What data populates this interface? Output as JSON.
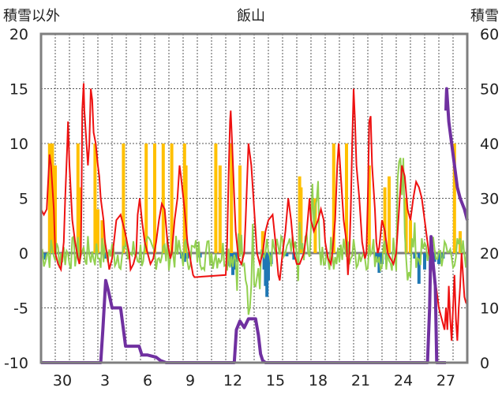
{
  "chart_data": {
    "type": "line",
    "title": "飯山",
    "left_axis_label": "積雪以外",
    "right_axis_label": "積雪",
    "y_left": {
      "min": -10,
      "max": 20,
      "ticks": [
        "20",
        "15",
        "10",
        "5",
        "0",
        "-5",
        "-10"
      ]
    },
    "y_right": {
      "min": 0,
      "max": 60,
      "ticks": [
        "60",
        "50",
        "40",
        "30",
        "20",
        "10",
        "0"
      ]
    },
    "x": {
      "min": 0,
      "max": 30,
      "ticks": [
        {
          "v": 1.5,
          "label": "30"
        },
        {
          "v": 4.5,
          "label": "3"
        },
        {
          "v": 7.5,
          "label": "6"
        },
        {
          "v": 10.5,
          "label": "9"
        },
        {
          "v": 13.5,
          "label": "12"
        },
        {
          "v": 16.5,
          "label": "15"
        },
        {
          "v": 19.5,
          "label": "18"
        },
        {
          "v": 22.5,
          "label": "21"
        },
        {
          "v": 25.5,
          "label": "24"
        },
        {
          "v": 28.5,
          "label": "27"
        }
      ]
    },
    "colors": {
      "temperature": "#ee1111",
      "snowfall": "#ffc000",
      "precip": "#1f77b4",
      "wind": "#92d050",
      "snow_depth": "#7030a0",
      "grid": "#555555",
      "frame": "#7f7f7f"
    },
    "snowfall_bars": [
      [
        0.6,
        10
      ],
      [
        0.8,
        10
      ],
      [
        1.0,
        8
      ],
      [
        2.6,
        10
      ],
      [
        2.7,
        6
      ],
      [
        3.8,
        10
      ],
      [
        4.0,
        4
      ],
      [
        4.3,
        3
      ],
      [
        5.8,
        10
      ],
      [
        7.4,
        10
      ],
      [
        8.0,
        10
      ],
      [
        8.6,
        10
      ],
      [
        9.2,
        10
      ],
      [
        10.1,
        10
      ],
      [
        10.2,
        8
      ],
      [
        12.3,
        10
      ],
      [
        12.6,
        8
      ],
      [
        13.4,
        10
      ],
      [
        14.0,
        8
      ],
      [
        15.6,
        2
      ],
      [
        18.2,
        7
      ],
      [
        18.3,
        6
      ],
      [
        19.3,
        5
      ],
      [
        20.6,
        10
      ],
      [
        21.5,
        10
      ],
      [
        23.1,
        8
      ],
      [
        24.2,
        6
      ],
      [
        24.5,
        7
      ],
      [
        25.7,
        5
      ],
      [
        26.0,
        3
      ],
      [
        29.1,
        10
      ],
      [
        29.5,
        2
      ]
    ],
    "precip_bars": [
      [
        0.3,
        -0.6
      ],
      [
        4.5,
        -0.5
      ],
      [
        9.9,
        -0.5
      ],
      [
        10.1,
        -0.8
      ],
      [
        10.3,
        -0.5
      ],
      [
        11.2,
        -0.4
      ],
      [
        13.2,
        -0.4
      ],
      [
        13.3,
        -1.2
      ],
      [
        13.5,
        -2.0
      ],
      [
        13.6,
        -1.5
      ],
      [
        13.8,
        -0.8
      ],
      [
        15.7,
        -1.5
      ],
      [
        15.8,
        -3.0
      ],
      [
        15.9,
        -4.0
      ],
      [
        16.0,
        -2.5
      ],
      [
        16.2,
        -1.0
      ],
      [
        17.3,
        -0.3
      ],
      [
        17.8,
        -0.6
      ],
      [
        23.6,
        -0.8
      ],
      [
        23.8,
        -1.8
      ],
      [
        24.0,
        -1.0
      ],
      [
        24.3,
        -0.6
      ],
      [
        26.3,
        -0.5
      ],
      [
        26.6,
        -2.8
      ],
      [
        27.0,
        -1.5
      ],
      [
        27.4,
        -1.6
      ],
      [
        27.7,
        -0.8
      ],
      [
        28.0,
        -1.0
      ],
      [
        28.3,
        -0.5
      ]
    ],
    "snow_depth_left_units": [
      [
        0,
        -10
      ],
      [
        4.2,
        -10
      ],
      [
        4.35,
        -7
      ],
      [
        4.55,
        -2.5
      ],
      [
        4.75,
        -3.5
      ],
      [
        5.0,
        -5
      ],
      [
        5.3,
        -5
      ],
      [
        5.6,
        -5
      ],
      [
        5.75,
        -6.5
      ],
      [
        5.95,
        -8.5
      ],
      [
        6.9,
        -8.5
      ],
      [
        7.1,
        -9.3
      ],
      [
        7.5,
        -9.3
      ],
      [
        8.1,
        -9.5
      ],
      [
        8.4,
        -9.8
      ],
      [
        8.8,
        -10
      ],
      [
        13.6,
        -10
      ],
      [
        13.75,
        -7
      ],
      [
        14.0,
        -6.2
      ],
      [
        14.3,
        -6.8
      ],
      [
        14.6,
        -6
      ],
      [
        15.1,
        -6
      ],
      [
        15.3,
        -7.5
      ],
      [
        15.45,
        -9.2
      ],
      [
        15.6,
        -9.8
      ],
      [
        15.8,
        -10
      ],
      [
        27.2,
        -10
      ],
      [
        27.35,
        -5
      ],
      [
        27.45,
        1.5
      ],
      [
        27.6,
        -1
      ],
      [
        27.75,
        -3
      ],
      [
        27.85,
        -10
      ],
      [
        28.5,
        -10
      ]
    ],
    "snow_depth_right_gap": [
      [
        28.5,
        13
      ],
      [
        28.52,
        14
      ],
      [
        28.55,
        15
      ],
      [
        28.7,
        12
      ],
      [
        28.9,
        10
      ],
      [
        29.1,
        8
      ],
      [
        29.3,
        6
      ],
      [
        29.5,
        5
      ],
      [
        29.8,
        4
      ],
      [
        30.0,
        3
      ]
    ],
    "temperature": [
      [
        0,
        4
      ],
      [
        0.2,
        3.5
      ],
      [
        0.4,
        4
      ],
      [
        0.6,
        9
      ],
      [
        0.7,
        8
      ],
      [
        0.9,
        4
      ],
      [
        1.0,
        0
      ],
      [
        1.2,
        -1
      ],
      [
        1.4,
        -1.5
      ],
      [
        1.6,
        1
      ],
      [
        1.7,
        5
      ],
      [
        1.85,
        10
      ],
      [
        1.9,
        12
      ],
      [
        2.0,
        8
      ],
      [
        2.2,
        3
      ],
      [
        2.4,
        1
      ],
      [
        2.6,
        -0.5
      ],
      [
        2.7,
        -1
      ],
      [
        2.8,
        0
      ],
      [
        2.85,
        5
      ],
      [
        2.9,
        13
      ],
      [
        3.0,
        15.5
      ],
      [
        3.05,
        13
      ],
      [
        3.2,
        10
      ],
      [
        3.3,
        8
      ],
      [
        3.4,
        10
      ],
      [
        3.5,
        15
      ],
      [
        3.6,
        14
      ],
      [
        3.7,
        11
      ],
      [
        3.85,
        10
      ],
      [
        4.0,
        8
      ],
      [
        4.1,
        7
      ],
      [
        4.2,
        5
      ],
      [
        4.4,
        3
      ],
      [
        4.5,
        1
      ],
      [
        4.7,
        -0.5
      ],
      [
        4.8,
        -1.5
      ],
      [
        5.0,
        -0.5
      ],
      [
        5.3,
        3
      ],
      [
        5.6,
        3.5
      ],
      [
        5.9,
        2
      ],
      [
        6.2,
        0
      ],
      [
        6.3,
        -1.5
      ],
      [
        6.5,
        -1
      ],
      [
        6.7,
        0
      ],
      [
        6.8,
        3.5
      ],
      [
        6.95,
        5
      ],
      [
        7.1,
        3
      ],
      [
        7.3,
        1
      ],
      [
        7.5,
        0
      ],
      [
        7.7,
        -1
      ],
      [
        7.9,
        -0.5
      ],
      [
        8.1,
        1
      ],
      [
        8.3,
        3
      ],
      [
        8.5,
        4.5
      ],
      [
        8.7,
        4
      ],
      [
        8.9,
        1
      ],
      [
        9.1,
        -0.5
      ],
      [
        9.2,
        0
      ],
      [
        9.4,
        3
      ],
      [
        9.6,
        5
      ],
      [
        9.75,
        8
      ],
      [
        9.85,
        7
      ],
      [
        10.1,
        4
      ],
      [
        10.3,
        1
      ],
      [
        10.5,
        -0.5
      ],
      [
        10.7,
        -2
      ],
      [
        10.8,
        -2.2
      ],
      [
        13.0,
        -2
      ],
      [
        13.1,
        1
      ],
      [
        13.2,
        7
      ],
      [
        13.3,
        12
      ],
      [
        13.35,
        13
      ],
      [
        13.45,
        10
      ],
      [
        13.6,
        5
      ],
      [
        13.7,
        2
      ],
      [
        13.9,
        -0.5
      ],
      [
        14.1,
        -1
      ],
      [
        14.3,
        0
      ],
      [
        14.4,
        3
      ],
      [
        14.6,
        10
      ],
      [
        14.8,
        8
      ],
      [
        15.0,
        4
      ],
      [
        15.2,
        0
      ],
      [
        15.4,
        -1
      ],
      [
        15.6,
        0
      ],
      [
        15.8,
        2
      ],
      [
        16.0,
        3
      ],
      [
        16.3,
        3.5
      ],
      [
        16.5,
        1
      ],
      [
        16.7,
        -2
      ],
      [
        16.8,
        -2.5
      ],
      [
        17.0,
        0
      ],
      [
        17.2,
        2
      ],
      [
        17.4,
        5
      ],
      [
        17.6,
        3
      ],
      [
        17.8,
        0
      ],
      [
        18.0,
        -1
      ],
      [
        18.2,
        -1
      ],
      [
        18.5,
        0
      ],
      [
        18.7,
        2
      ],
      [
        18.9,
        5
      ],
      [
        19.0,
        3
      ],
      [
        19.2,
        2
      ],
      [
        19.5,
        3
      ],
      [
        19.7,
        4
      ],
      [
        19.9,
        3
      ],
      [
        20.0,
        1
      ],
      [
        20.2,
        -0.5
      ],
      [
        20.4,
        -1
      ],
      [
        20.5,
        0
      ],
      [
        20.7,
        3
      ],
      [
        20.85,
        8
      ],
      [
        20.95,
        10
      ],
      [
        21.1,
        7
      ],
      [
        21.3,
        3
      ],
      [
        21.5,
        1
      ],
      [
        21.6,
        -2
      ],
      [
        21.7,
        0
      ],
      [
        21.8,
        4
      ],
      [
        21.9,
        10
      ],
      [
        22.0,
        15
      ],
      [
        22.1,
        12
      ],
      [
        22.2,
        8
      ],
      [
        22.4,
        5
      ],
      [
        22.6,
        1
      ],
      [
        22.8,
        -0.5
      ],
      [
        22.9,
        0
      ],
      [
        23.0,
        5
      ],
      [
        23.1,
        12
      ],
      [
        23.2,
        12.5
      ],
      [
        23.3,
        8
      ],
      [
        23.5,
        4
      ],
      [
        23.6,
        1
      ],
      [
        23.7,
        0
      ],
      [
        23.8,
        0.5
      ],
      [
        24.0,
        3
      ],
      [
        24.2,
        2
      ],
      [
        24.4,
        0
      ],
      [
        24.6,
        -0.5
      ],
      [
        24.8,
        -1
      ],
      [
        25.0,
        0
      ],
      [
        25.2,
        4
      ],
      [
        25.4,
        8
      ],
      [
        25.6,
        7
      ],
      [
        25.8,
        4
      ],
      [
        26.0,
        3
      ],
      [
        26.2,
        5
      ],
      [
        26.4,
        6.5
      ],
      [
        26.6,
        6
      ],
      [
        26.8,
        5
      ],
      [
        27.0,
        3
      ],
      [
        27.3,
        0
      ],
      [
        27.5,
        -1
      ],
      [
        27.8,
        -3
      ],
      [
        28.0,
        -5
      ],
      [
        28.2,
        -6
      ],
      [
        28.4,
        -7
      ],
      [
        28.5,
        -5
      ],
      [
        28.6,
        -7
      ],
      [
        28.7,
        -3
      ],
      [
        28.8,
        -6
      ],
      [
        28.9,
        -8
      ],
      [
        29.0,
        -5
      ],
      [
        29.1,
        -2
      ],
      [
        29.2,
        -6
      ],
      [
        29.3,
        -8
      ],
      [
        29.4,
        -5
      ],
      [
        29.5,
        -3
      ],
      [
        29.6,
        0
      ],
      [
        29.7,
        -2
      ],
      [
        29.8,
        -4
      ],
      [
        29.9,
        -4.5
      ],
      [
        30.0,
        -4.7
      ]
    ]
  }
}
